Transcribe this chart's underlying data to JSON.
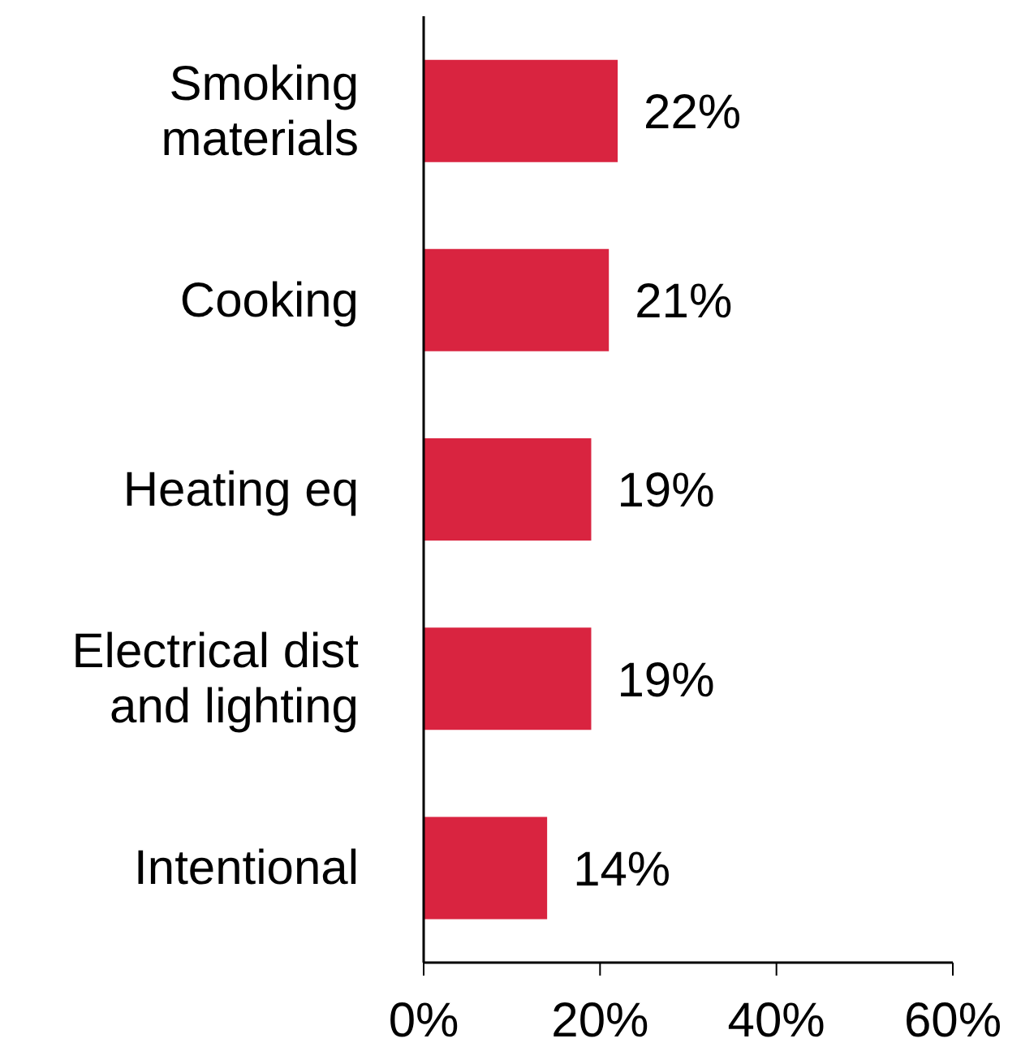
{
  "chart_data": {
    "type": "bar",
    "orientation": "horizontal",
    "categories": [
      "Smoking materials",
      "Cooking",
      "Heating eq",
      "Electrical dist and lighting",
      "Intentional"
    ],
    "values": [
      22,
      21,
      19,
      19,
      14
    ],
    "value_labels": [
      "22%",
      "21%",
      "19%",
      "19%",
      "14%"
    ],
    "color": "#d92440",
    "xlim": [
      0,
      60
    ],
    "xticks": [
      {
        "value": 0,
        "label": "0%"
      },
      {
        "value": 20,
        "label": "20%"
      },
      {
        "value": 40,
        "label": "40%"
      },
      {
        "value": 60,
        "label": "60%"
      }
    ],
    "grid": false,
    "legend": false
  }
}
